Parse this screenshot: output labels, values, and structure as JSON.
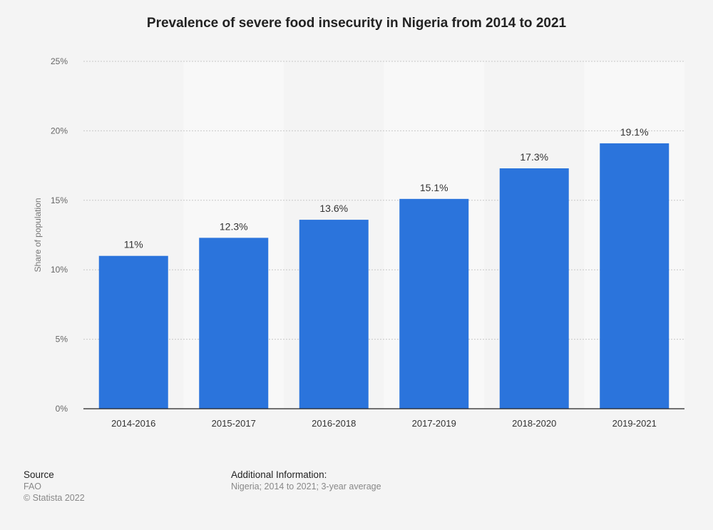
{
  "chart_data": {
    "type": "bar",
    "title": "Prevalence of severe food insecurity in Nigeria from 2014 to 2021",
    "xlabel": "",
    "ylabel": "Share of population",
    "categories": [
      "2014-2016",
      "2015-2017",
      "2016-2018",
      "2017-2019",
      "2018-2020",
      "2019-2021"
    ],
    "values": [
      11,
      12.3,
      13.6,
      15.1,
      17.3,
      19.1
    ],
    "data_labels": [
      "11%",
      "12.3%",
      "13.6%",
      "15.1%",
      "17.3%",
      "19.1%"
    ],
    "ylim": [
      0,
      25
    ],
    "yticks": [
      0,
      5,
      10,
      15,
      20,
      25
    ],
    "ytick_labels": [
      "0%",
      "5%",
      "10%",
      "15%",
      "20%",
      "25%"
    ],
    "grid": true,
    "bar_color": "#2b74dc"
  },
  "footer": {
    "source_heading": "Source",
    "source_name": "FAO",
    "copyright": "© Statista 2022",
    "info_heading": "Additional Information:",
    "info_text": "Nigeria; 2014 to 2021; 3-year average"
  }
}
